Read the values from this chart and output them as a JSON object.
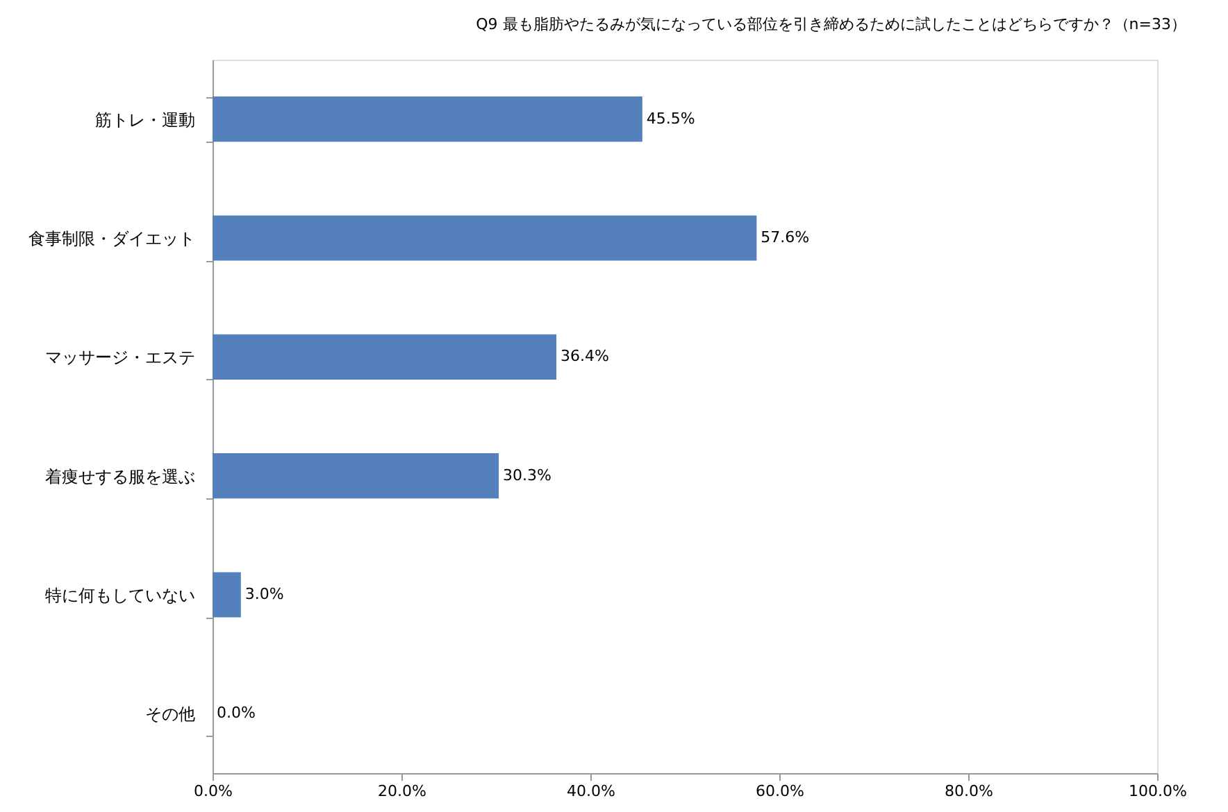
{
  "chart_data": {
    "type": "bar",
    "orientation": "horizontal",
    "title": "Q9 最も脂肪やたるみが気になっている部位を引き締めるために試したことはどちらですか？（n=33）",
    "categories": [
      "筋トレ・運動",
      "食事制限・ダイエット",
      "マッサージ・エステ",
      "着痩せする服を選ぶ",
      "特に何もしていない",
      "その他"
    ],
    "values": [
      45.5,
      57.6,
      36.4,
      30.3,
      3.0,
      0.0
    ],
    "value_labels": [
      "45.5%",
      "57.6%",
      "36.4%",
      "30.3%",
      "3.0%",
      "0.0%"
    ],
    "color": "#5480bb",
    "xlim": [
      0,
      100
    ],
    "xticks": [
      {
        "value": 0,
        "label": "0.0%"
      },
      {
        "value": 20,
        "label": "20.0%"
      },
      {
        "value": 40,
        "label": "40.0%"
      },
      {
        "value": 60,
        "label": "60.0%"
      },
      {
        "value": 80,
        "label": "80.0%"
      },
      {
        "value": 100,
        "label": "100.0%"
      }
    ],
    "grid": false
  }
}
